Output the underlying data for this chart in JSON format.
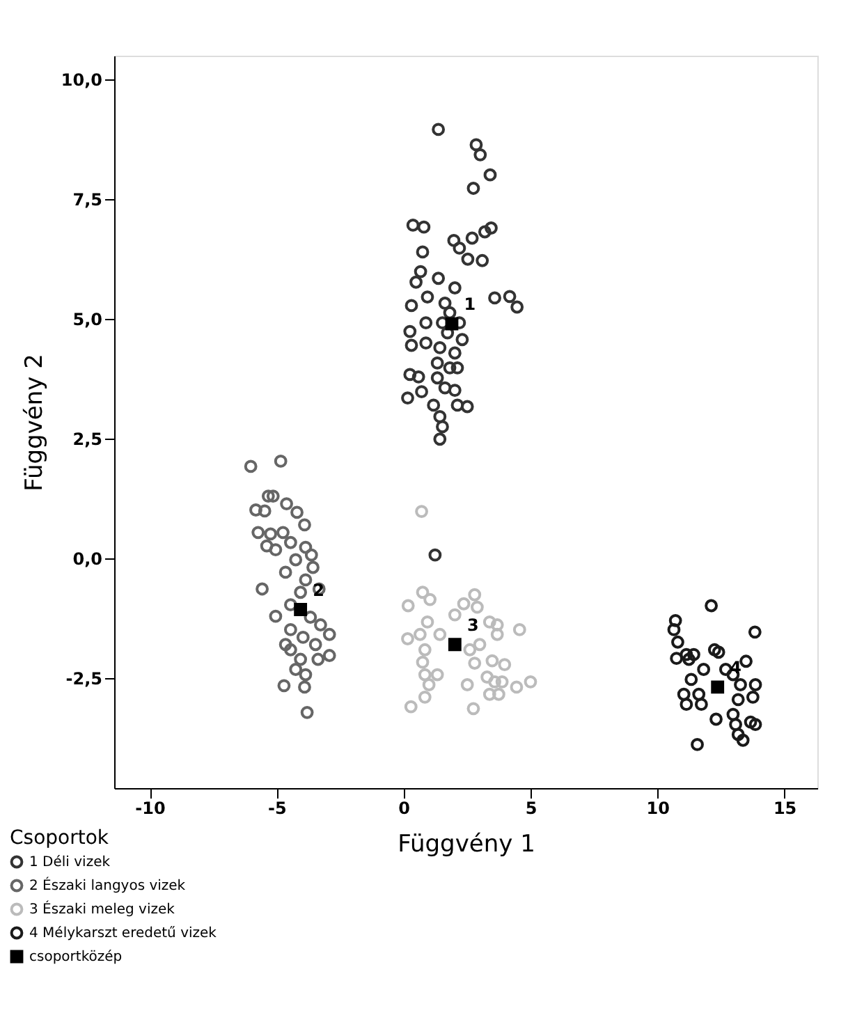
{
  "chart_data": {
    "type": "scatter",
    "xlabel": "Függvény 1",
    "ylabel": "Függvény 2",
    "legend_title": "Csoportok",
    "legend": "bottom left",
    "grid": false,
    "marker": "circle",
    "xlim": [
      -11.4,
      16.3
    ],
    "xticks": [
      -10,
      -5,
      0,
      5,
      10,
      15
    ],
    "ylim": [
      -4.8,
      10.5
    ],
    "yticks": [
      {
        "value": -2.5,
        "label": "-2,5"
      },
      {
        "value": 0,
        "label": "0,0"
      },
      {
        "value": 2.5,
        "label": "2,5"
      },
      {
        "value": 5,
        "label": "5,0"
      },
      {
        "value": 7.5,
        "label": "7,5"
      },
      {
        "value": 10,
        "label": "10,0"
      }
    ],
    "annotations": [
      {
        "text": "1",
        "x": 1.9,
        "y": 4.9
      },
      {
        "text": "2",
        "x": -4.06,
        "y": -1.07
      },
      {
        "text": "3",
        "x": 2.02,
        "y": -1.8
      },
      {
        "text": "4",
        "x": 12.37,
        "y": -2.69
      }
    ],
    "series": [
      {
        "name": "1 Déli vizek",
        "color": "#333333",
        "x": [
          1.37,
          2.86,
          3.02,
          3.41,
          2.75,
          0.37,
          0.8,
          0.75,
          1.98,
          2.2,
          2.7,
          3.2,
          3.45,
          2.53,
          3.1,
          0.67,
          0.49,
          1.37,
          0.31,
          0.94,
          3.59,
          4.18,
          4.47,
          0.25,
          0.31,
          0.88,
          0.88,
          0.25,
          0.59,
          0.16,
          0.71,
          1.18,
          2.12,
          2.51,
          2.02,
          2.31,
          1.43,
          1.53,
          1.63,
          1.82,
          2.02,
          1.73,
          1.43,
          2.02,
          1.33,
          1.82,
          1.53,
          2.2,
          2.12,
          1.33,
          1.63,
          1.43,
          1.24
        ],
        "values": [
          8.96,
          8.64,
          8.43,
          8.01,
          7.73,
          6.96,
          6.92,
          6.4,
          6.64,
          6.48,
          6.69,
          6.82,
          6.9,
          6.25,
          6.22,
          5.99,
          5.77,
          5.85,
          5.28,
          5.46,
          5.44,
          5.47,
          5.25,
          4.74,
          4.45,
          4.5,
          4.92,
          3.84,
          3.79,
          3.35,
          3.48,
          3.2,
          3.2,
          3.17,
          3.51,
          4.57,
          2.96,
          2.75,
          5.33,
          5.13,
          5.65,
          4.71,
          4.4,
          4.29,
          4.08,
          3.98,
          4.92,
          4.92,
          3.98,
          3.77,
          3.56,
          2.49,
          0.07
        ]
      },
      {
        "name": "2 Északi langyos vizek",
        "color": "#666666",
        "x": [
          -6.02,
          -4.84,
          -5.82,
          -5.47,
          -5.33,
          -5.14,
          -4.61,
          -4.2,
          -3.9,
          -5.73,
          -5.24,
          -4.75,
          -5.39,
          -5.04,
          -4.45,
          -3.86,
          -3.63,
          -4.25,
          -3.57,
          -4.65,
          -5.57,
          -3.86,
          -4.06,
          -3.33,
          -5.04,
          -4.45,
          -3.27,
          -2.92,
          -4.45,
          -3.96,
          -3.47,
          -2.92,
          -4.45,
          -4.06,
          -3.37,
          -4.71,
          -3.9,
          -3.86,
          -3.8,
          -4.25,
          -3.67,
          -4.65
        ],
        "values": [
          1.92,
          2.03,
          1.01,
          0.99,
          1.3,
          1.3,
          1.14,
          0.96,
          0.7,
          0.54,
          0.51,
          0.54,
          0.26,
          0.18,
          0.33,
          0.23,
          0.07,
          -0.03,
          -0.19,
          -0.29,
          -0.64,
          -0.45,
          -0.71,
          -0.64,
          -1.21,
          -0.97,
          -1.39,
          -1.59,
          -1.49,
          -1.65,
          -1.8,
          -2.03,
          -1.91,
          -2.11,
          -2.11,
          -2.66,
          -2.69,
          -2.43,
          -3.22,
          -2.32,
          -1.23,
          -1.8
        ]
      },
      {
        "name": "3 Északi meleg vizek",
        "color": "#bbbbbb",
        "x": [
          0.71,
          0.18,
          0.75,
          1.04,
          0.16,
          0.65,
          0.94,
          0.84,
          0.75,
          0.84,
          1.33,
          1.0,
          0.84,
          0.29,
          2.02,
          2.37,
          2.8,
          2.9,
          3.39,
          3.69,
          4.57,
          3.69,
          3.0,
          2.61,
          2.8,
          3.49,
          3.98,
          3.29,
          3.59,
          3.88,
          2.51,
          3.39,
          3.75,
          4.45,
          5.0,
          2.75,
          1.43
        ],
        "values": [
          0.98,
          -0.99,
          -0.71,
          -0.86,
          -1.68,
          -1.59,
          -1.33,
          -1.91,
          -2.17,
          -2.43,
          -2.43,
          -2.64,
          -2.9,
          -3.1,
          -1.18,
          -0.95,
          -0.76,
          -1.02,
          -1.33,
          -1.39,
          -1.49,
          -1.59,
          -1.8,
          -1.91,
          -2.19,
          -2.14,
          -2.22,
          -2.48,
          -2.58,
          -2.58,
          -2.64,
          -2.84,
          -2.84,
          -2.69,
          -2.58,
          -3.14,
          -1.59
        ]
      },
      {
        "name": "4 Mélykarszt eredetű vizek",
        "color": "#1a1a1a",
        "x": [
          12.12,
          10.71,
          10.65,
          10.8,
          10.75,
          11.14,
          11.43,
          11.24,
          12.25,
          12.41,
          13.84,
          13.49,
          11.33,
          11.82,
          11.04,
          11.14,
          11.63,
          11.73,
          12.31,
          11.57,
          12.98,
          13.27,
          13.86,
          13.18,
          13.76,
          12.98,
          13.08,
          13.67,
          13.86,
          13.18,
          13.37,
          12.69
        ],
        "values": [
          -0.99,
          -1.3,
          -1.49,
          -1.75,
          -2.09,
          -2.01,
          -2.01,
          -2.11,
          -1.91,
          -1.96,
          -1.54,
          -2.15,
          -2.53,
          -2.32,
          -2.84,
          -3.05,
          -2.84,
          -3.05,
          -3.36,
          -3.89,
          -2.43,
          -2.64,
          -2.64,
          -2.95,
          -2.9,
          -3.26,
          -3.47,
          -3.42,
          -3.47,
          -3.68,
          -3.8,
          -2.32
        ]
      },
      {
        "name": "csoportközép",
        "color": "#000000",
        "marker": "square",
        "x": [
          1.9,
          -4.06,
          2.02,
          12.37
        ],
        "values": [
          4.9,
          -1.07,
          -1.8,
          -2.69
        ]
      }
    ]
  }
}
